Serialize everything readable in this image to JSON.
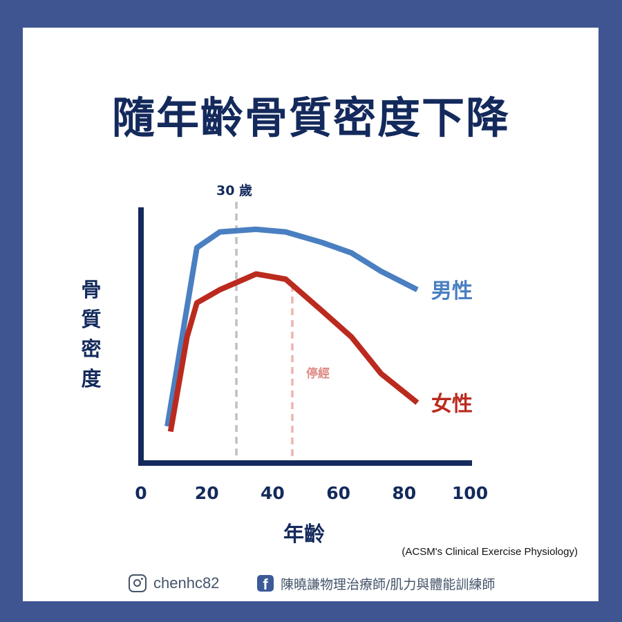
{
  "title": "隨年齡骨質密度下降",
  "source": "(ACSM's Clinical Exercise Physiology)",
  "footer": {
    "instagram_icon": "instagram-icon",
    "instagram": "chenhc82",
    "facebook_icon": "facebook-icon",
    "facebook": "陳曉謙物理治療師/肌力與體能訓練師"
  },
  "colors": {
    "background": "#3f5592",
    "title": "#142a5c",
    "male": "#4a7fc1",
    "female": "#bb2a1e",
    "marker_30": "#c0c0c0",
    "menopause": "#eeb4b0"
  },
  "chart_data": {
    "type": "line",
    "title": "隨年齡骨質密度下降",
    "xlabel": "年齡",
    "ylabel": "骨質密度",
    "xlim": [
      0,
      100
    ],
    "ylim": [
      0,
      100
    ],
    "xticks": [
      0,
      20,
      40,
      60,
      80,
      100
    ],
    "y_tick_labels": false,
    "grid": false,
    "legend": "inline-right",
    "series": [
      {
        "name": "男性",
        "color": "#4a7fc1",
        "points": [
          [
            8,
            14
          ],
          [
            17,
            82
          ],
          [
            24,
            88
          ],
          [
            35,
            89
          ],
          [
            44,
            88
          ],
          [
            55,
            84
          ],
          [
            64,
            80
          ],
          [
            73,
            73
          ],
          [
            84,
            66
          ]
        ]
      },
      {
        "name": "女性",
        "color": "#bb2a1e",
        "points": [
          [
            9,
            12
          ],
          [
            14,
            48
          ],
          [
            17,
            61
          ],
          [
            24,
            66
          ],
          [
            35,
            72
          ],
          [
            44,
            70
          ],
          [
            55,
            58
          ],
          [
            64,
            48
          ],
          [
            73,
            34
          ],
          [
            84,
            23
          ]
        ]
      }
    ],
    "annotations": [
      {
        "label": "30 歲",
        "x": 29,
        "color": "#c0c0c0",
        "style": "dashed"
      },
      {
        "label": "停經",
        "x": 46,
        "color": "#eeb4b0",
        "style": "dashed"
      }
    ]
  }
}
